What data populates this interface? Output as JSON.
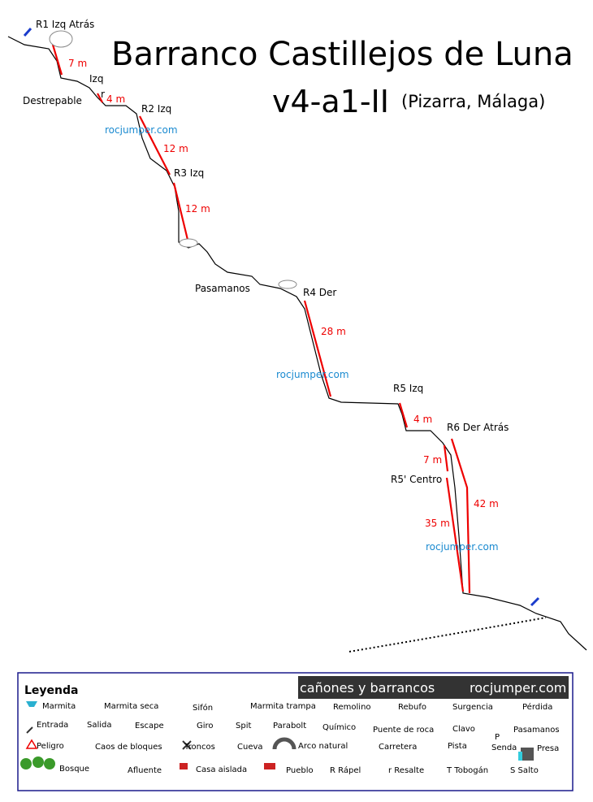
{
  "header": {
    "title": "Barranco Castillejos de Luna",
    "grade": "v4-a1-II",
    "location": "(Pizarra, Málaga)"
  },
  "labels": [
    "R1 Izq Atrás",
    "Izq",
    "r",
    "Destrepable",
    "R2 Izq",
    "R3 Izq",
    "Pasamanos",
    "R4 Der",
    "R5 Izq",
    "R6 Der Atrás",
    "R5' Centro"
  ],
  "lengths": [
    "7 m",
    "4 m",
    "12 m",
    "12 m",
    "28 m",
    "4 m",
    "7 m",
    "42 m",
    "35 m"
  ],
  "watermarks": [
    "rocjumper.com",
    "rocjumper.com",
    "rocjumper.com"
  ],
  "legend": {
    "title": "Leyenda",
    "banner": "cañones y barrancos",
    "banner_site": "rocjumper.com",
    "items": [
      "Marmita",
      "Marmita seca",
      "Sifón",
      "Marmita trampa",
      "Remolino",
      "Rebufo",
      "Surgencia",
      "Pérdida",
      "Entrada",
      "Salida",
      "Escape",
      "Giro",
      "Spit",
      "Parabolt",
      "Químico",
      "Puente de roca",
      "Clavo",
      "Pasamanos",
      "P",
      "Peligro",
      "Caos de bloques",
      "Troncos",
      "Cueva",
      "Arco natural",
      "Carretera",
      "Pista",
      "Senda",
      "Presa",
      "Bosque",
      "Afluente",
      "Casa aislada",
      "Pueblo",
      "R Rápel",
      "r Resalte",
      "T Tobogán",
      "S Salto"
    ]
  }
}
